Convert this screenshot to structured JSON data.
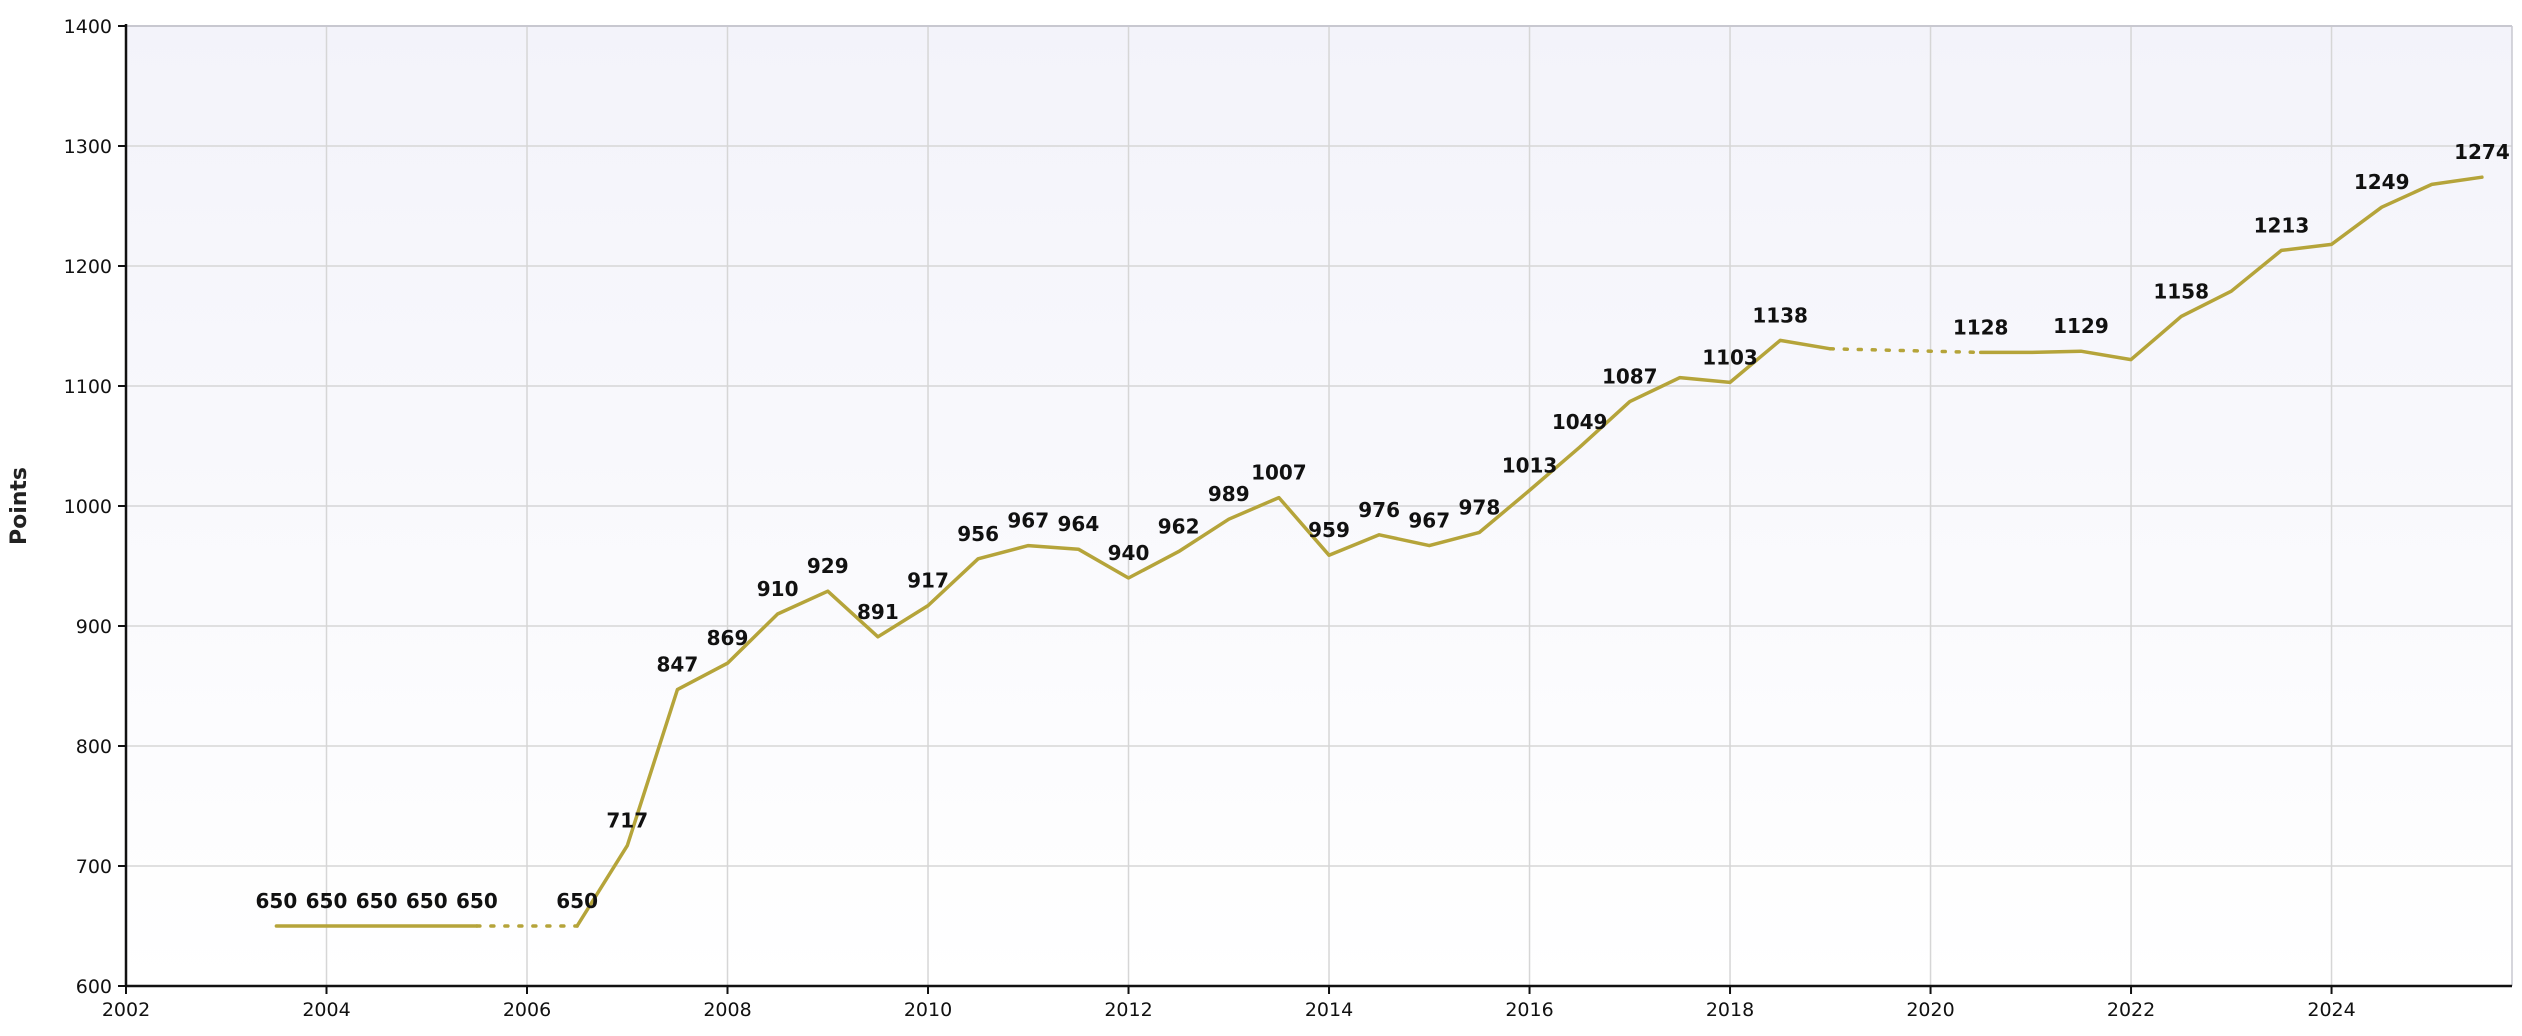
{
  "chart_data": {
    "type": "line",
    "title": "",
    "xlabel": "",
    "ylabel": "Points",
    "xlim": [
      2002,
      2025.8
    ],
    "ylim": [
      600,
      1400
    ],
    "x_ticks": [
      2002,
      2004,
      2006,
      2008,
      2010,
      2012,
      2014,
      2016,
      2018,
      2020,
      2022,
      2024
    ],
    "y_ticks": [
      600,
      700,
      800,
      900,
      1000,
      1100,
      1200,
      1300,
      1400
    ],
    "grid": true,
    "legend": "none",
    "series": [
      {
        "color": "#b5a43a",
        "points": [
          {
            "x": 2003.5,
            "y": 650,
            "label": "650"
          },
          {
            "x": 2004.0,
            "y": 650,
            "label": "650"
          },
          {
            "x": 2004.5,
            "y": 650,
            "label": "650"
          },
          {
            "x": 2005.0,
            "y": 650,
            "label": "650"
          },
          {
            "x": 2005.5,
            "y": 650,
            "label": "650"
          },
          {
            "x": 2006.5,
            "y": 650,
            "label": "650",
            "gap_before": true
          },
          {
            "x": 2007.0,
            "y": 717,
            "label": "717"
          },
          {
            "x": 2007.5,
            "y": 847,
            "label": "847"
          },
          {
            "x": 2008.0,
            "y": 869,
            "label": "869"
          },
          {
            "x": 2008.5,
            "y": 910,
            "label": "910"
          },
          {
            "x": 2009.0,
            "y": 929,
            "label": "929"
          },
          {
            "x": 2009.5,
            "y": 891,
            "label": "891"
          },
          {
            "x": 2010.0,
            "y": 917,
            "label": "917"
          },
          {
            "x": 2010.5,
            "y": 956,
            "label": "956"
          },
          {
            "x": 2011.0,
            "y": 967,
            "label": "967"
          },
          {
            "x": 2011.5,
            "y": 964,
            "label": "964"
          },
          {
            "x": 2012.0,
            "y": 940,
            "label": "940"
          },
          {
            "x": 2012.5,
            "y": 962,
            "label": "962"
          },
          {
            "x": 2013.0,
            "y": 989,
            "label": "989"
          },
          {
            "x": 2013.5,
            "y": 1007,
            "label": "1007"
          },
          {
            "x": 2014.0,
            "y": 959,
            "label": "959"
          },
          {
            "x": 2014.5,
            "y": 976,
            "label": "976"
          },
          {
            "x": 2015.0,
            "y": 967,
            "label": "967"
          },
          {
            "x": 2015.5,
            "y": 978,
            "label": "978"
          },
          {
            "x": 2016.0,
            "y": 1013,
            "label": "1013"
          },
          {
            "x": 2016.5,
            "y": 1049,
            "label": "1049"
          },
          {
            "x": 2017.0,
            "y": 1087,
            "label": "1087"
          },
          {
            "x": 2017.5,
            "y": 1107,
            "label": ""
          },
          {
            "x": 2018.0,
            "y": 1103,
            "label": "1103"
          },
          {
            "x": 2018.5,
            "y": 1138,
            "label": "1138"
          },
          {
            "x": 2019.0,
            "y": 1131,
            "label": ""
          },
          {
            "x": 2020.5,
            "y": 1128,
            "label": "1128",
            "gap_before": true
          },
          {
            "x": 2021.0,
            "y": 1128,
            "label": ""
          },
          {
            "x": 2021.5,
            "y": 1129,
            "label": "1129"
          },
          {
            "x": 2022.0,
            "y": 1122,
            "label": ""
          },
          {
            "x": 2022.5,
            "y": 1158,
            "label": "1158"
          },
          {
            "x": 2023.0,
            "y": 1179,
            "label": ""
          },
          {
            "x": 2023.5,
            "y": 1213,
            "label": "1213"
          },
          {
            "x": 2024.0,
            "y": 1218,
            "label": ""
          },
          {
            "x": 2024.5,
            "y": 1249,
            "label": "1249"
          },
          {
            "x": 2025.0,
            "y": 1268,
            "label": ""
          },
          {
            "x": 2025.5,
            "y": 1274,
            "label": "1274"
          }
        ]
      }
    ]
  }
}
